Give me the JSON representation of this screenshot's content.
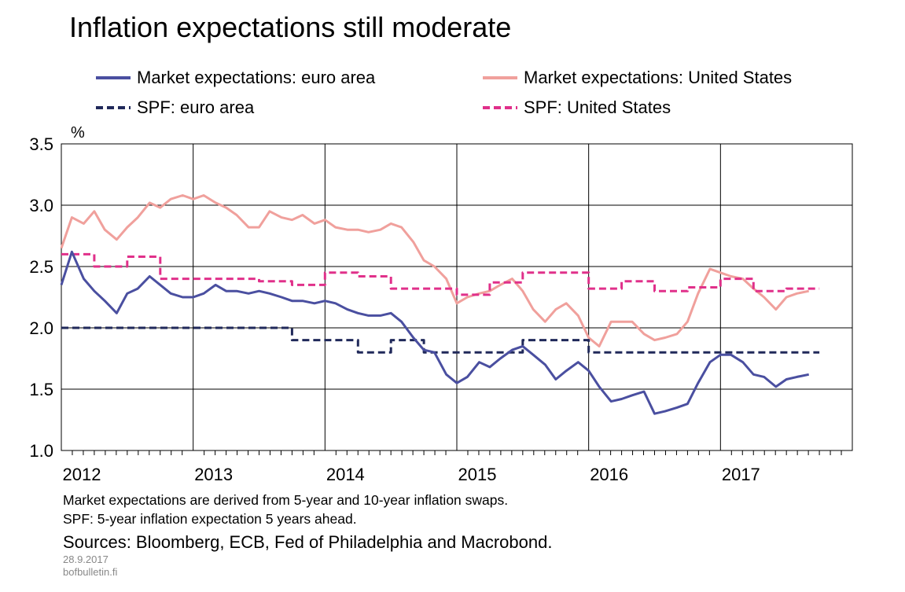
{
  "title": "Inflation expectations still moderate",
  "unit": "%",
  "notes": [
    "Market expectations are derived from 5-year and 10-year inflation swaps.",
    "SPF: 5-year inflation expectation 5 years ahead."
  ],
  "sources": "Sources: Bloomberg, ECB, Fed of Philadelphia and Macrobond.",
  "date": "28.9.2017",
  "site": "bofbulletin.fi",
  "colors": {
    "market_euro": "#4a4fa0",
    "market_us": "#f0a09c",
    "spf_euro": "#20295a",
    "spf_us": "#e0308a"
  },
  "chart_data": {
    "type": "line",
    "title": "Inflation expectations still moderate",
    "ylabel": "%",
    "ylim": [
      1.0,
      3.5
    ],
    "yticks": [
      "1.0",
      "1.5",
      "2.0",
      "2.5",
      "3.0",
      "3.5"
    ],
    "xlim": [
      2012.0,
      2018.0
    ],
    "xticks": [
      "2012",
      "2013",
      "2014",
      "2015",
      "2016",
      "2017"
    ],
    "grid": true,
    "legend_position": "top",
    "series": [
      {
        "name": "Market expectations: euro area",
        "style": "solid",
        "points": [
          [
            2012.0,
            2.35
          ],
          [
            2012.08,
            2.62
          ],
          [
            2012.17,
            2.4
          ],
          [
            2012.25,
            2.3
          ],
          [
            2012.33,
            2.22
          ],
          [
            2012.42,
            2.12
          ],
          [
            2012.5,
            2.28
          ],
          [
            2012.58,
            2.32
          ],
          [
            2012.67,
            2.42
          ],
          [
            2012.75,
            2.35
          ],
          [
            2012.83,
            2.28
          ],
          [
            2012.92,
            2.25
          ],
          [
            2013.0,
            2.25
          ],
          [
            2013.08,
            2.28
          ],
          [
            2013.17,
            2.35
          ],
          [
            2013.25,
            2.3
          ],
          [
            2013.33,
            2.3
          ],
          [
            2013.42,
            2.28
          ],
          [
            2013.5,
            2.3
          ],
          [
            2013.58,
            2.28
          ],
          [
            2013.67,
            2.25
          ],
          [
            2013.75,
            2.22
          ],
          [
            2013.83,
            2.22
          ],
          [
            2013.92,
            2.2
          ],
          [
            2014.0,
            2.22
          ],
          [
            2014.08,
            2.2
          ],
          [
            2014.17,
            2.15
          ],
          [
            2014.25,
            2.12
          ],
          [
            2014.33,
            2.1
          ],
          [
            2014.42,
            2.1
          ],
          [
            2014.5,
            2.12
          ],
          [
            2014.58,
            2.05
          ],
          [
            2014.67,
            1.92
          ],
          [
            2014.75,
            1.82
          ],
          [
            2014.83,
            1.8
          ],
          [
            2014.92,
            1.62
          ],
          [
            2015.0,
            1.55
          ],
          [
            2015.08,
            1.6
          ],
          [
            2015.17,
            1.72
          ],
          [
            2015.25,
            1.68
          ],
          [
            2015.33,
            1.75
          ],
          [
            2015.42,
            1.82
          ],
          [
            2015.5,
            1.85
          ],
          [
            2015.58,
            1.78
          ],
          [
            2015.67,
            1.7
          ],
          [
            2015.75,
            1.58
          ],
          [
            2015.83,
            1.65
          ],
          [
            2015.92,
            1.72
          ],
          [
            2016.0,
            1.65
          ],
          [
            2016.08,
            1.52
          ],
          [
            2016.17,
            1.4
          ],
          [
            2016.25,
            1.42
          ],
          [
            2016.33,
            1.45
          ],
          [
            2016.42,
            1.48
          ],
          [
            2016.5,
            1.3
          ],
          [
            2016.58,
            1.32
          ],
          [
            2016.67,
            1.35
          ],
          [
            2016.75,
            1.38
          ],
          [
            2016.83,
            1.55
          ],
          [
            2016.92,
            1.72
          ],
          [
            2017.0,
            1.78
          ],
          [
            2017.08,
            1.78
          ],
          [
            2017.17,
            1.72
          ],
          [
            2017.25,
            1.62
          ],
          [
            2017.33,
            1.6
          ],
          [
            2017.42,
            1.52
          ],
          [
            2017.5,
            1.58
          ],
          [
            2017.58,
            1.6
          ],
          [
            2017.67,
            1.62
          ]
        ]
      },
      {
        "name": "Market expectations: United States",
        "style": "solid",
        "points": [
          [
            2012.0,
            2.65
          ],
          [
            2012.08,
            2.9
          ],
          [
            2012.17,
            2.85
          ],
          [
            2012.25,
            2.95
          ],
          [
            2012.33,
            2.8
          ],
          [
            2012.42,
            2.72
          ],
          [
            2012.5,
            2.82
          ],
          [
            2012.58,
            2.9
          ],
          [
            2012.67,
            3.02
          ],
          [
            2012.75,
            2.98
          ],
          [
            2012.83,
            3.05
          ],
          [
            2012.92,
            3.08
          ],
          [
            2013.0,
            3.05
          ],
          [
            2013.08,
            3.08
          ],
          [
            2013.17,
            3.02
          ],
          [
            2013.25,
            2.98
          ],
          [
            2013.33,
            2.92
          ],
          [
            2013.42,
            2.82
          ],
          [
            2013.5,
            2.82
          ],
          [
            2013.58,
            2.95
          ],
          [
            2013.67,
            2.9
          ],
          [
            2013.75,
            2.88
          ],
          [
            2013.83,
            2.92
          ],
          [
            2013.92,
            2.85
          ],
          [
            2014.0,
            2.88
          ],
          [
            2014.08,
            2.82
          ],
          [
            2014.17,
            2.8
          ],
          [
            2014.25,
            2.8
          ],
          [
            2014.33,
            2.78
          ],
          [
            2014.42,
            2.8
          ],
          [
            2014.5,
            2.85
          ],
          [
            2014.58,
            2.82
          ],
          [
            2014.67,
            2.7
          ],
          [
            2014.75,
            2.55
          ],
          [
            2014.83,
            2.5
          ],
          [
            2014.92,
            2.4
          ],
          [
            2015.0,
            2.2
          ],
          [
            2015.08,
            2.25
          ],
          [
            2015.17,
            2.28
          ],
          [
            2015.25,
            2.3
          ],
          [
            2015.33,
            2.35
          ],
          [
            2015.42,
            2.4
          ],
          [
            2015.5,
            2.3
          ],
          [
            2015.58,
            2.15
          ],
          [
            2015.67,
            2.05
          ],
          [
            2015.75,
            2.15
          ],
          [
            2015.83,
            2.2
          ],
          [
            2015.92,
            2.1
          ],
          [
            2016.0,
            1.92
          ],
          [
            2016.08,
            1.85
          ],
          [
            2016.17,
            2.05
          ],
          [
            2016.25,
            2.05
          ],
          [
            2016.33,
            2.05
          ],
          [
            2016.42,
            1.95
          ],
          [
            2016.5,
            1.9
          ],
          [
            2016.58,
            1.92
          ],
          [
            2016.67,
            1.95
          ],
          [
            2016.75,
            2.05
          ],
          [
            2016.83,
            2.28
          ],
          [
            2016.92,
            2.48
          ],
          [
            2017.0,
            2.45
          ],
          [
            2017.08,
            2.42
          ],
          [
            2017.17,
            2.4
          ],
          [
            2017.25,
            2.32
          ],
          [
            2017.33,
            2.25
          ],
          [
            2017.42,
            2.15
          ],
          [
            2017.5,
            2.25
          ],
          [
            2017.58,
            2.28
          ],
          [
            2017.67,
            2.3
          ]
        ]
      },
      {
        "name": "SPF: euro area",
        "style": "dashed",
        "points": [
          [
            2012.0,
            2.0
          ],
          [
            2013.75,
            2.0
          ],
          [
            2013.75,
            1.9
          ],
          [
            2014.25,
            1.9
          ],
          [
            2014.25,
            1.8
          ],
          [
            2014.5,
            1.8
          ],
          [
            2014.5,
            1.9
          ],
          [
            2014.75,
            1.9
          ],
          [
            2014.75,
            1.8
          ],
          [
            2015.5,
            1.8
          ],
          [
            2015.5,
            1.9
          ],
          [
            2016.0,
            1.9
          ],
          [
            2016.0,
            1.8
          ],
          [
            2017.75,
            1.8
          ]
        ]
      },
      {
        "name": "SPF: United States",
        "style": "dashed",
        "points": [
          [
            2012.0,
            2.6
          ],
          [
            2012.25,
            2.6
          ],
          [
            2012.25,
            2.5
          ],
          [
            2012.5,
            2.5
          ],
          [
            2012.5,
            2.58
          ],
          [
            2012.75,
            2.58
          ],
          [
            2012.75,
            2.4
          ],
          [
            2013.5,
            2.4
          ],
          [
            2013.5,
            2.38
          ],
          [
            2013.75,
            2.38
          ],
          [
            2013.75,
            2.35
          ],
          [
            2014.0,
            2.35
          ],
          [
            2014.0,
            2.45
          ],
          [
            2014.25,
            2.45
          ],
          [
            2014.25,
            2.42
          ],
          [
            2014.5,
            2.42
          ],
          [
            2014.5,
            2.32
          ],
          [
            2015.0,
            2.32
          ],
          [
            2015.0,
            2.27
          ],
          [
            2015.25,
            2.27
          ],
          [
            2015.25,
            2.37
          ],
          [
            2015.5,
            2.37
          ],
          [
            2015.5,
            2.45
          ],
          [
            2016.0,
            2.45
          ],
          [
            2016.0,
            2.32
          ],
          [
            2016.25,
            2.32
          ],
          [
            2016.25,
            2.38
          ],
          [
            2016.5,
            2.38
          ],
          [
            2016.5,
            2.3
          ],
          [
            2016.75,
            2.3
          ],
          [
            2016.75,
            2.33
          ],
          [
            2017.0,
            2.33
          ],
          [
            2017.0,
            2.4
          ],
          [
            2017.25,
            2.4
          ],
          [
            2017.25,
            2.3
          ],
          [
            2017.5,
            2.3
          ],
          [
            2017.5,
            2.32
          ],
          [
            2017.75,
            2.32
          ]
        ]
      }
    ]
  }
}
